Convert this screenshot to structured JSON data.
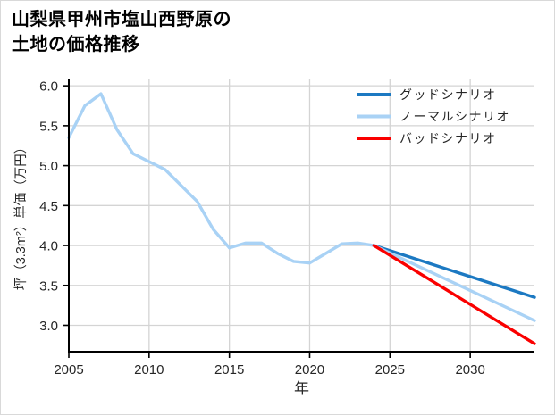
{
  "title": {
    "line1": "山梨県甲州市塩山西野原の",
    "line2": "土地の価格推移"
  },
  "chart_data": {
    "type": "line",
    "title": "山梨県甲州市塩山西野原の土地の価格推移",
    "xlabel": "年",
    "ylabel": "坪（3.3m²）単価（万円）",
    "xlim": [
      2005,
      2034
    ],
    "ylim": [
      2.67,
      6.08
    ],
    "x_ticks": [
      2005,
      2010,
      2015,
      2020,
      2025,
      2030
    ],
    "y_ticks": [
      3.0,
      3.5,
      4.0,
      4.5,
      5.0,
      5.5,
      6.0
    ],
    "y_tick_labels": [
      "3.0",
      "3.5",
      "4.0",
      "4.5",
      "5.0",
      "5.5",
      "6.0"
    ],
    "grid": true,
    "legend_position": "upper-right",
    "series": [
      {
        "id": "historical",
        "in_legend": false,
        "color": "#a9d2f5",
        "x": [
          2005,
          2006,
          2007,
          2008,
          2009,
          2010,
          2011,
          2012,
          2013,
          2014,
          2015,
          2016,
          2017,
          2018,
          2019,
          2020,
          2021,
          2022,
          2023,
          2024
        ],
        "y": [
          5.35,
          5.75,
          5.9,
          5.45,
          5.15,
          5.05,
          4.95,
          4.75,
          4.55,
          4.2,
          3.97,
          4.03,
          4.03,
          3.9,
          3.8,
          3.78,
          3.9,
          4.02,
          4.03,
          4.0
        ]
      },
      {
        "id": "good-scenario",
        "name": "グッドシナリオ",
        "in_legend": true,
        "color": "#1c79c2",
        "x": [
          2024,
          2034
        ],
        "y": [
          4.0,
          3.35
        ]
      },
      {
        "id": "normal-scenario",
        "name": "ノーマルシナリオ",
        "in_legend": true,
        "color": "#a9d2f5",
        "x": [
          2024,
          2034
        ],
        "y": [
          4.0,
          3.06
        ]
      },
      {
        "id": "bad-scenario",
        "name": "バッドシナリオ",
        "in_legend": true,
        "color": "#fa0000",
        "x": [
          2024,
          2034
        ],
        "y": [
          4.0,
          2.77
        ]
      }
    ],
    "colors": {
      "grid": "#d4d4d4",
      "axis": "#000000",
      "tick_text": "#262626",
      "title_text": "#000000",
      "background": "#ffffff",
      "border": "#d9d9d9"
    }
  }
}
